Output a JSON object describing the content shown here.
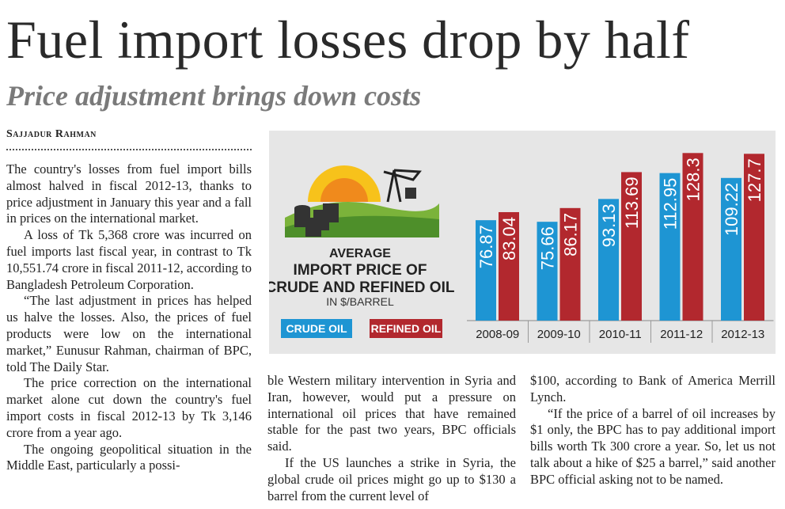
{
  "header": {
    "title": "Fuel import losses drop by half",
    "subtitle": "Price adjustment brings down costs",
    "byline": "Sajjadur Rahman"
  },
  "columns": [
    [
      "The country's losses from fuel import bills almost halved in fiscal 2012-13, thanks to price adjustment in January this year and a fall in prices on the international market.",
      "A loss of Tk 5,368 crore was incurred on fuel imports last fiscal year, in contrast to Tk 10,551.74 crore in fiscal 2011-12, according to Bangladesh Petroleum Corporation.",
      "“The last adjustment in prices has helped us halve the losses. Also, the prices of fuel products were low on the international market,” Eunusur Rahman, chairman of BPC, told The Daily Star.",
      "The price correction on the international market alone cut down the country's fuel import costs in fiscal 2012-13 by Tk 3,146 crore from a year ago.",
      "The ongoing geopolitical situation in the Middle East, particularly a possi-"
    ],
    [
      "ble Western military intervention in Syria and Iran, however, would put a pressure on international oil prices that have remained stable for the past two years, BPC officials said.",
      "If the US launches a strike in Syria, the global crude oil prices might go up to $130 a barrel from the current level of"
    ],
    [
      "$100, according to Bank of America Merrill Lynch.",
      "“If the price of a barrel of oil increases by $1 only, the BPC has to pay additional import bills worth Tk 300 crore a year. So, let us not talk about a hike of $25 a barrel,” said another BPC official asking not to be named."
    ]
  ],
  "chart_data": {
    "type": "bar",
    "title": [
      "AVERAGE",
      "IMPORT PRICE OF",
      "CRUDE AND REFINED OIL"
    ],
    "subtitle": "IN $/BARREL",
    "categories": [
      "2008-09",
      "2009-10",
      "2010-11",
      "2011-12",
      "2012-13"
    ],
    "series": [
      {
        "name": "CRUDE OIL",
        "color": "#1e95d3",
        "values": [
          76.87,
          75.66,
          93.13,
          112.95,
          109.22
        ]
      },
      {
        "name": "REFINED OIL",
        "color": "#b2282e",
        "values": [
          83.04,
          86.17,
          113.69,
          128.3,
          127.7
        ]
      }
    ]
  }
}
